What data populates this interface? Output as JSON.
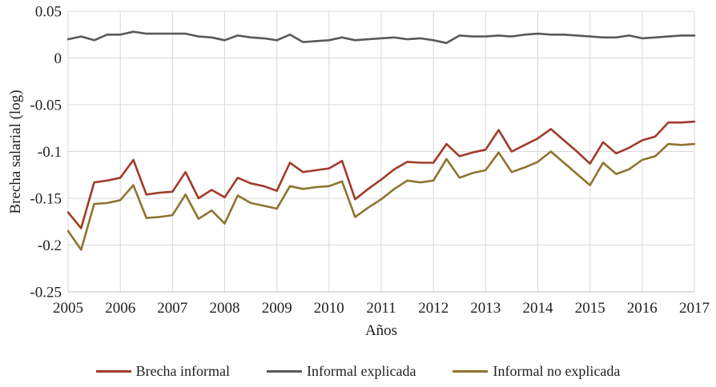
{
  "colors": {
    "background": "#FFFFFF",
    "gridline": "#D9D9D9",
    "axis_line": "#BFBFBF",
    "text": "#1F1F1F",
    "series_red": "#A13B29",
    "series_gray": "#595959",
    "series_olive": "#8E742F"
  },
  "chart_data": {
    "type": "line",
    "title": "",
    "xlabel": "Años",
    "ylabel": "Brecha salarial (log)",
    "grid": true,
    "legend_position": "bottom",
    "xlim": [
      2005,
      2017
    ],
    "ylim": [
      -0.25,
      0.05
    ],
    "x_tick_labels": [
      "2005",
      "2006",
      "2007",
      "2008",
      "2009",
      "2010",
      "2011",
      "2012",
      "2013",
      "2014",
      "2015",
      "2016",
      "2017"
    ],
    "x_tick_values": [
      2005,
      2006,
      2007,
      2008,
      2009,
      2010,
      2011,
      2012,
      2013,
      2014,
      2015,
      2016,
      2017
    ],
    "y_tick_labels": [
      "0.05",
      "0",
      "-0.05",
      "-0.1",
      "-0.15",
      "-0.2",
      "-0.25"
    ],
    "y_tick_values": [
      0.05,
      0,
      -0.05,
      -0.1,
      -0.15,
      -0.2,
      -0.25
    ],
    "x": [
      2005,
      2005.25,
      2005.5,
      2005.75,
      2006,
      2006.25,
      2006.5,
      2006.75,
      2007,
      2007.25,
      2007.5,
      2007.75,
      2008,
      2008.25,
      2008.5,
      2008.75,
      2009,
      2009.25,
      2009.5,
      2009.75,
      2010,
      2010.25,
      2010.5,
      2010.75,
      2011,
      2011.25,
      2011.5,
      2011.75,
      2012,
      2012.25,
      2012.5,
      2012.75,
      2013,
      2013.25,
      2013.5,
      2013.75,
      2014,
      2014.25,
      2014.5,
      2014.75,
      2015,
      2015.25,
      2015.5,
      2015.75,
      2016,
      2016.25,
      2016.5,
      2016.75,
      2017
    ],
    "series": [
      {
        "name": "Brecha informal",
        "color": "#A13B29",
        "values": [
          -0.165,
          -0.182,
          -0.133,
          -0.131,
          -0.128,
          -0.109,
          -0.146,
          -0.144,
          -0.143,
          -0.122,
          -0.15,
          -0.141,
          -0.149,
          -0.128,
          -0.134,
          -0.137,
          -0.142,
          -0.112,
          -0.122,
          -0.12,
          -0.118,
          -0.11,
          -0.151,
          -0.14,
          -0.13,
          -0.119,
          -0.111,
          -0.112,
          -0.112,
          -0.092,
          -0.105,
          -0.101,
          -0.098,
          -0.077,
          -0.1,
          -0.093,
          -0.086,
          -0.076,
          -0.088,
          -0.1,
          -0.113,
          -0.09,
          -0.102,
          -0.096,
          -0.088,
          -0.084,
          -0.069,
          -0.069,
          -0.068
        ]
      },
      {
        "name": "Informal explicada",
        "color": "#595959",
        "values": [
          0.02,
          0.023,
          0.019,
          0.025,
          0.025,
          0.028,
          0.026,
          0.026,
          0.026,
          0.026,
          0.023,
          0.022,
          0.019,
          0.024,
          0.022,
          0.021,
          0.019,
          0.025,
          0.017,
          0.018,
          0.019,
          0.022,
          0.019,
          0.02,
          0.021,
          0.022,
          0.02,
          0.021,
          0.019,
          0.016,
          0.024,
          0.023,
          0.023,
          0.024,
          0.023,
          0.025,
          0.026,
          0.025,
          0.025,
          0.024,
          0.023,
          0.022,
          0.022,
          0.024,
          0.021,
          0.022,
          0.023,
          0.024,
          0.024
        ]
      },
      {
        "name": "Informal no explicada",
        "color": "#8E742F",
        "values": [
          -0.185,
          -0.205,
          -0.156,
          -0.155,
          -0.152,
          -0.136,
          -0.171,
          -0.17,
          -0.168,
          -0.146,
          -0.172,
          -0.163,
          -0.177,
          -0.147,
          -0.155,
          -0.158,
          -0.161,
          -0.137,
          -0.14,
          -0.138,
          -0.137,
          -0.132,
          -0.17,
          -0.16,
          -0.151,
          -0.14,
          -0.131,
          -0.133,
          -0.131,
          -0.108,
          -0.128,
          -0.123,
          -0.12,
          -0.101,
          -0.122,
          -0.117,
          -0.111,
          -0.1,
          -0.112,
          -0.124,
          -0.136,
          -0.112,
          -0.124,
          -0.119,
          -0.109,
          -0.105,
          -0.092,
          -0.093,
          -0.092
        ]
      }
    ]
  }
}
